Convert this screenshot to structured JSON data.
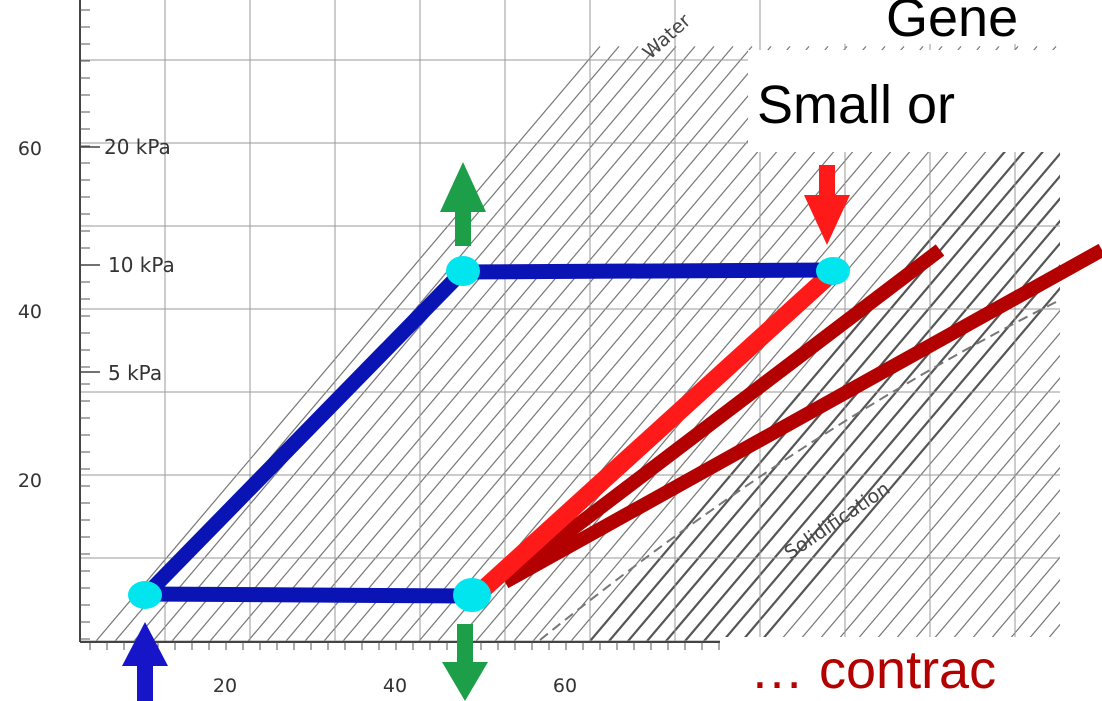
{
  "slide": {
    "title_fragment": "Gene",
    "subtitle_fragment": "Small or",
    "bottom_fragment": "… contrac"
  },
  "chart_data": {
    "type": "diagram",
    "x_ticks": [
      {
        "value": 20,
        "label": "20"
      },
      {
        "value": 40,
        "label": "40"
      },
      {
        "value": 60,
        "label": "60"
      }
    ],
    "y_ticks": [
      {
        "value": 20,
        "label": "20"
      },
      {
        "value": 40,
        "label": "40"
      },
      {
        "value": 60,
        "label": "60"
      }
    ],
    "pressure_labels": [
      {
        "label": "20 kPa",
        "y": 61
      },
      {
        "label": "10 kPa",
        "y": 48.7
      },
      {
        "label": "5 kPa",
        "y": 36.5
      }
    ],
    "curve_labels": [
      "Water",
      "Solidification"
    ],
    "cycle_points": [
      {
        "x": 9.5,
        "y": 8
      },
      {
        "x": 42.5,
        "y": 45
      },
      {
        "x": 87.5,
        "y": 45
      },
      {
        "x": 47.5,
        "y": 8
      }
    ],
    "colors": {
      "cycle": "#0a14b4",
      "point": "#00e5ee",
      "heat_in": "#1d9e48",
      "compression": "#ff1a1a",
      "contraction": "#b30000",
      "pump": "#1616c8"
    }
  }
}
